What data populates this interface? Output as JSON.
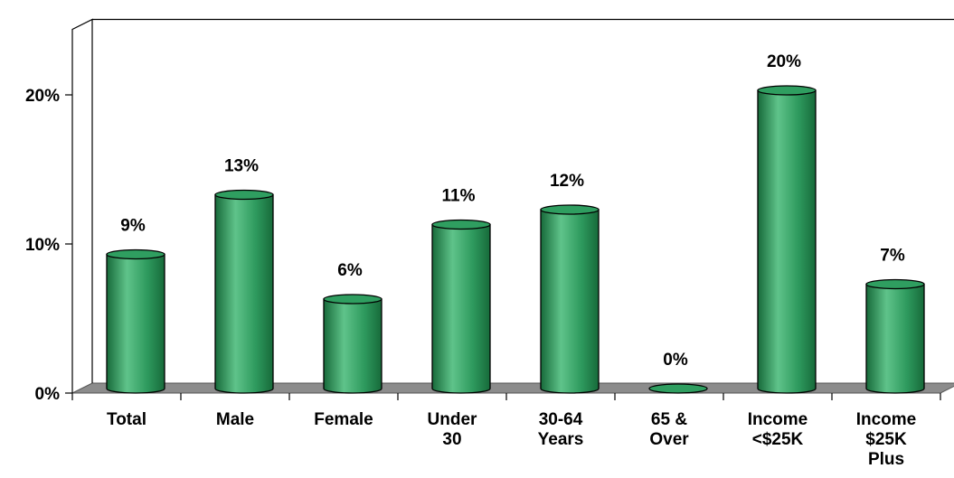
{
  "chart_data": {
    "type": "bar",
    "style": "3d-cylinder",
    "categories": [
      [
        "Total"
      ],
      [
        "Male"
      ],
      [
        "Female"
      ],
      [
        "Under",
        "30"
      ],
      [
        "30-64",
        "Years"
      ],
      [
        "65 &",
        "Over"
      ],
      [
        "Income",
        "<$25K"
      ],
      [
        "Income",
        "$25K",
        "Plus"
      ]
    ],
    "values": [
      9,
      13,
      6,
      11,
      12,
      0,
      20,
      7
    ],
    "data_labels": [
      "9%",
      "13%",
      "6%",
      "11%",
      "12%",
      "0%",
      "20%",
      "7%"
    ],
    "yticks": [
      {
        "value": 0,
        "label": "0%"
      },
      {
        "value": 10,
        "label": "10%"
      },
      {
        "value": 20,
        "label": "20%"
      }
    ],
    "ylim": [
      0,
      25
    ],
    "grid": false,
    "legend": "none",
    "colors": {
      "bar_light": "#5fc38a",
      "bar_mid": "#2e9a5e",
      "bar_dark": "#176a3a",
      "bar_top": "#2f9e60",
      "floor": "#8c8c8c",
      "wall_line": "#000000"
    }
  }
}
